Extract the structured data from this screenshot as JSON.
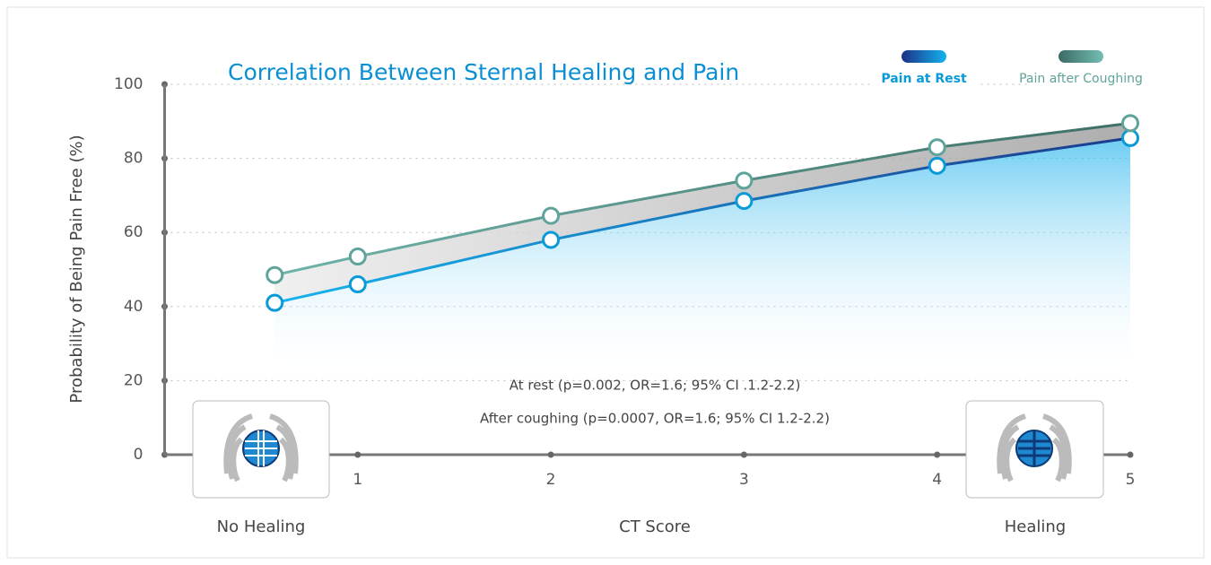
{
  "chart_data": {
    "type": "line",
    "title": "Correlation Between Sternal Healing and Pain",
    "x_label": "CT Score",
    "y_label": "Probability of Being Pain Free (%)",
    "x": [
      0.57,
      1,
      2,
      3,
      4,
      5
    ],
    "series": [
      {
        "name": "Pain at Rest",
        "color": "#0a9ad8",
        "values": [
          41,
          46,
          58,
          68.5,
          78,
          85.5
        ]
      },
      {
        "name": "Pain after Coughing",
        "color": "#5fa39a",
        "values": [
          48.5,
          53.5,
          64.5,
          74,
          83,
          89.5
        ]
      }
    ],
    "xlim": [
      0,
      5
    ],
    "ylim": [
      0,
      100
    ],
    "xticks": [
      1,
      2,
      3,
      4,
      5
    ],
    "yticks": [
      0,
      20,
      40,
      60,
      80,
      100
    ],
    "grid": true,
    "legend": "top-right",
    "annotations": [
      "No Healing",
      "Healing",
      "At rest (p=0.002, OR=1.6; 95% CI .1.2-2.2)",
      "After coughing (p=0.0007, OR=1.6; 95% CI 1.2-2.2)"
    ]
  }
}
